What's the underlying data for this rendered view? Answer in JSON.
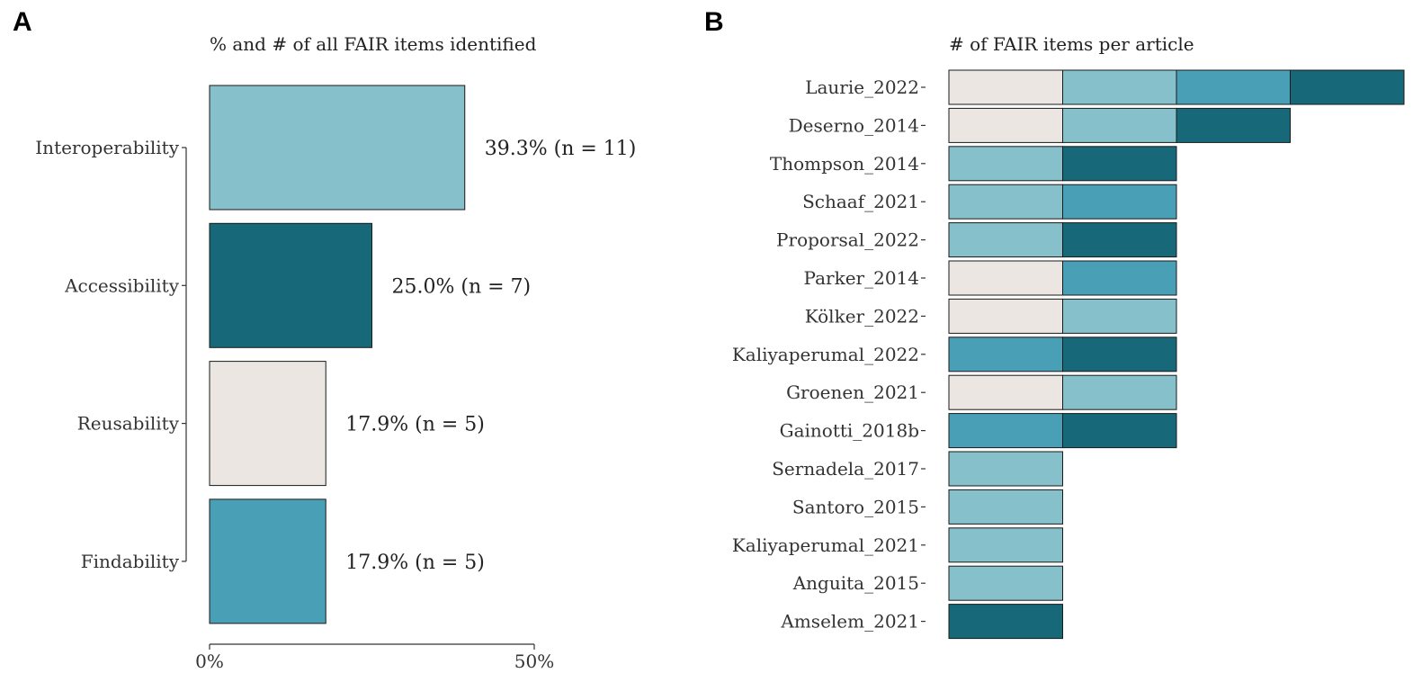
{
  "colors": {
    "Interoperability": "#86c0ca",
    "Accessibility": "#176878",
    "Reusability": "#ebe6e2",
    "Findability": "#499fb5"
  },
  "chart_data": [
    {
      "panel": "A",
      "type": "bar",
      "orientation": "horizontal",
      "title": "% and # of all FAIR items identified",
      "categories": [
        "Interoperability",
        "Accessibility",
        "Reusability",
        "Findability"
      ],
      "values": [
        39.3,
        25.0,
        17.9,
        17.9
      ],
      "counts": [
        11,
        7,
        5,
        5
      ],
      "data_labels": [
        "39.3% (n = 11)",
        "25.0% (n = 7)",
        "17.9% (n = 5)",
        "17.9% (n = 5)"
      ],
      "xlim": [
        0,
        50
      ],
      "xticks": [
        0,
        50
      ],
      "xtick_labels": [
        "0%",
        "50%"
      ]
    },
    {
      "panel": "B",
      "type": "bar",
      "orientation": "horizontal",
      "stacked": true,
      "title": "# of FAIR items per article",
      "articles": [
        {
          "name": "Laurie_2022",
          "items": [
            "Reusability",
            "Interoperability",
            "Findability",
            "Accessibility"
          ]
        },
        {
          "name": "Deserno_2014",
          "items": [
            "Reusability",
            "Interoperability",
            "Accessibility"
          ]
        },
        {
          "name": "Thompson_2014",
          "items": [
            "Interoperability",
            "Accessibility"
          ]
        },
        {
          "name": "Schaaf_2021",
          "items": [
            "Interoperability",
            "Findability"
          ]
        },
        {
          "name": "Proporsal_2022",
          "items": [
            "Interoperability",
            "Accessibility"
          ]
        },
        {
          "name": "Parker_2014",
          "items": [
            "Reusability",
            "Findability"
          ]
        },
        {
          "name": "Kölker_2022",
          "items": [
            "Reusability",
            "Interoperability"
          ]
        },
        {
          "name": "Kaliyaperumal_2022",
          "items": [
            "Findability",
            "Accessibility"
          ]
        },
        {
          "name": "Groenen_2021",
          "items": [
            "Reusability",
            "Interoperability"
          ]
        },
        {
          "name": "Gainotti_2018b",
          "items": [
            "Findability",
            "Accessibility"
          ]
        },
        {
          "name": "Sernadela_2017",
          "items": [
            "Interoperability"
          ]
        },
        {
          "name": "Santoro_2015",
          "items": [
            "Interoperability"
          ]
        },
        {
          "name": "Kaliyaperumal_2021",
          "items": [
            "Interoperability"
          ]
        },
        {
          "name": "Anguita_2015",
          "items": [
            "Interoperability"
          ]
        },
        {
          "name": "Amselem_2021",
          "items": [
            "Accessibility"
          ]
        }
      ]
    }
  ]
}
